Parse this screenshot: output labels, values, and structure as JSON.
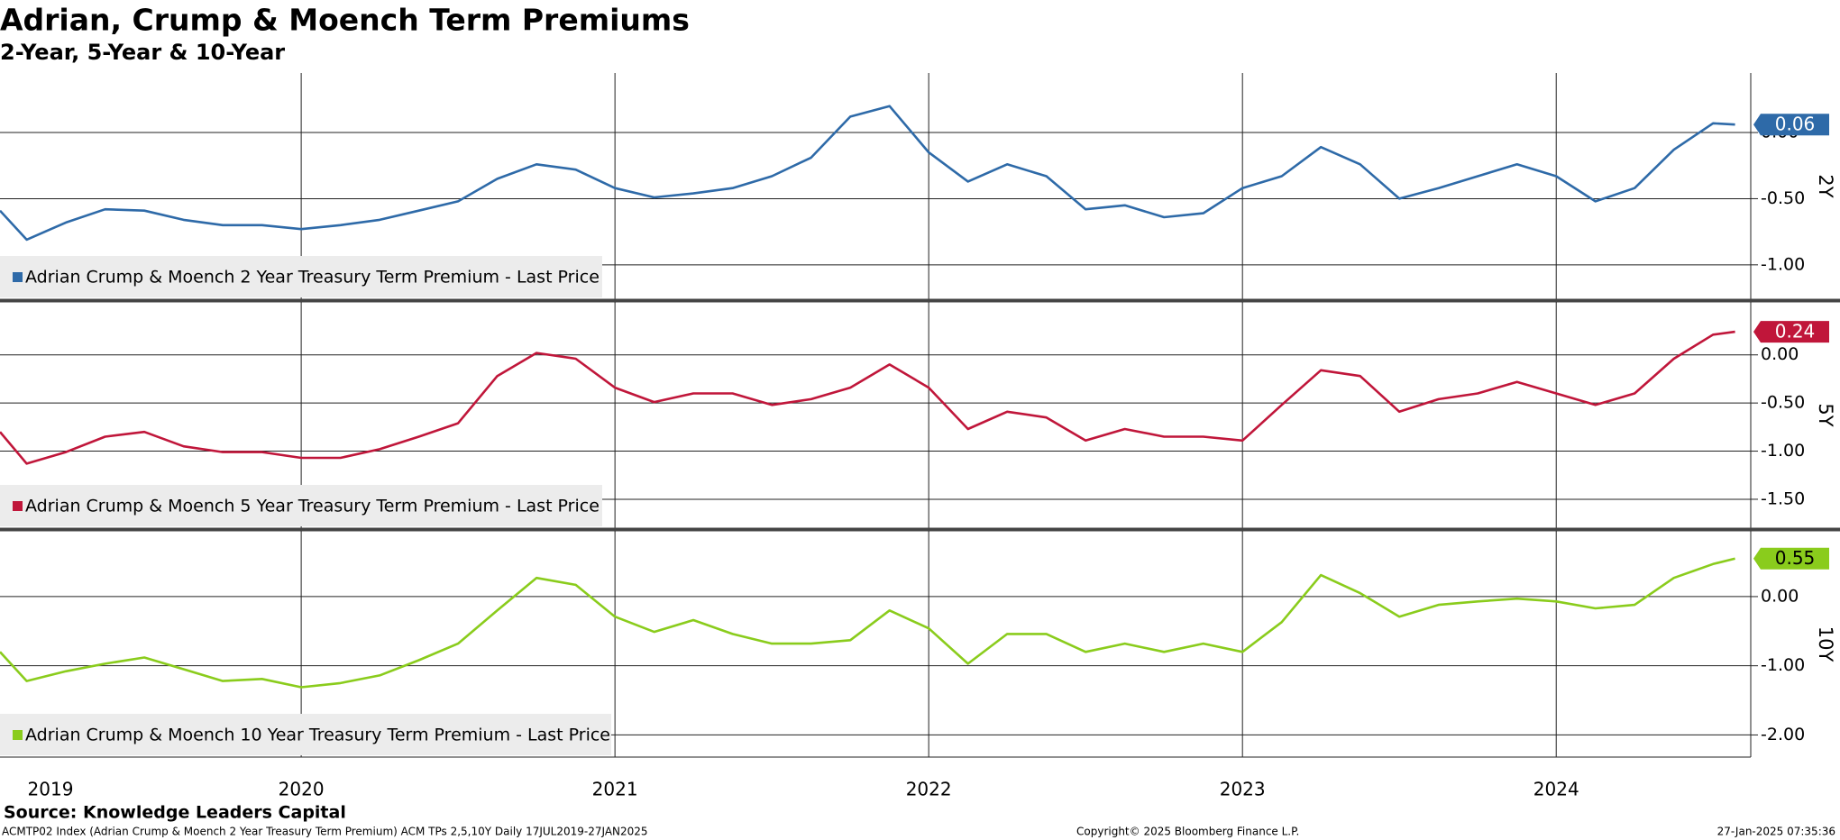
{
  "header": {
    "title": "Adrian, Crump & Moench Term Premiums",
    "subtitle": "2-Year, 5-Year & 10-Year"
  },
  "chart_data": [
    {
      "type": "line",
      "axis_label": "2Y",
      "x": [
        2019.54,
        2019.625,
        2019.75,
        2019.875,
        2020.0,
        2020.125,
        2020.25,
        2020.375,
        2020.5,
        2020.625,
        2020.75,
        2020.875,
        2021.0,
        2021.125,
        2021.25,
        2021.375,
        2021.5,
        2021.625,
        2021.75,
        2021.875,
        2022.0,
        2022.125,
        2022.25,
        2022.375,
        2022.5,
        2022.625,
        2022.75,
        2022.875,
        2023.0,
        2023.125,
        2023.25,
        2023.375,
        2023.5,
        2023.625,
        2023.75,
        2023.875,
        2024.0,
        2024.125,
        2024.25,
        2024.375,
        2024.5,
        2024.625,
        2024.75,
        2024.875,
        2025.0,
        2025.07
      ],
      "series": [
        {
          "name": "Adrian Crump & Moench 2 Year Treasury Term Premium - Last Price",
          "color": "#2e6aa8",
          "values": [
            -0.59,
            -0.81,
            -0.68,
            -0.58,
            -0.59,
            -0.66,
            -0.7,
            -0.7,
            -0.73,
            -0.7,
            -0.66,
            -0.59,
            -0.52,
            -0.35,
            -0.24,
            -0.28,
            -0.42,
            -0.49,
            -0.46,
            -0.42,
            -0.33,
            -0.19,
            0.12,
            0.2,
            -0.15,
            -0.37,
            -0.24,
            -0.33,
            -0.58,
            -0.55,
            -0.64,
            -0.61,
            -0.42,
            -0.33,
            -0.11,
            -0.24,
            -0.5,
            -0.42,
            -0.33,
            -0.24,
            -0.33,
            -0.52,
            -0.42,
            -0.13,
            0.07,
            0.06
          ]
        }
      ],
      "ylim": [
        -1.26,
        0.45
      ],
      "yticks": [
        {
          "value": 0,
          "label": "0.00"
        },
        {
          "value": -0.5,
          "label": "-0.50"
        },
        {
          "value": -1,
          "label": "-1.00"
        }
      ]
    },
    {
      "type": "line",
      "axis_label": "5Y",
      "x": [
        2019.54,
        2019.625,
        2019.75,
        2019.875,
        2020.0,
        2020.125,
        2020.25,
        2020.375,
        2020.5,
        2020.625,
        2020.75,
        2020.875,
        2021.0,
        2021.125,
        2021.25,
        2021.375,
        2021.5,
        2021.625,
        2021.75,
        2021.875,
        2022.0,
        2022.125,
        2022.25,
        2022.375,
        2022.5,
        2022.625,
        2022.75,
        2022.875,
        2023.0,
        2023.125,
        2023.25,
        2023.375,
        2023.5,
        2023.625,
        2023.75,
        2023.875,
        2024.0,
        2024.125,
        2024.25,
        2024.375,
        2024.5,
        2024.625,
        2024.75,
        2024.875,
        2025.0,
        2025.07
      ],
      "series": [
        {
          "name": "Adrian Crump & Moench 5 Year Treasury Term Premium - Last Price",
          "color": "#c0163a",
          "values": [
            -0.8,
            -1.13,
            -1.01,
            -0.85,
            -0.8,
            -0.95,
            -1.01,
            -1.01,
            -1.07,
            -1.07,
            -0.98,
            -0.85,
            -0.71,
            -0.22,
            0.02,
            -0.04,
            -0.34,
            -0.49,
            -0.4,
            -0.4,
            -0.52,
            -0.46,
            -0.34,
            -0.1,
            -0.34,
            -0.77,
            -0.59,
            -0.65,
            -0.89,
            -0.77,
            -0.85,
            -0.85,
            -0.89,
            -0.52,
            -0.16,
            -0.22,
            -0.59,
            -0.46,
            -0.4,
            -0.28,
            -0.4,
            -0.52,
            -0.4,
            -0.04,
            0.21,
            0.24
          ]
        }
      ],
      "ylim": [
        -1.8,
        0.55
      ],
      "yticks": [
        {
          "value": 0,
          "label": "0.00"
        },
        {
          "value": -0.5,
          "label": "-0.50"
        },
        {
          "value": -1,
          "label": "-1.00"
        },
        {
          "value": -1.5,
          "label": "-1.50"
        }
      ]
    },
    {
      "type": "line",
      "axis_label": "10Y",
      "x": [
        2019.54,
        2019.625,
        2019.75,
        2019.875,
        2020.0,
        2020.125,
        2020.25,
        2020.375,
        2020.5,
        2020.625,
        2020.75,
        2020.875,
        2021.0,
        2021.125,
        2021.25,
        2021.375,
        2021.5,
        2021.625,
        2021.75,
        2021.875,
        2022.0,
        2022.125,
        2022.25,
        2022.375,
        2022.5,
        2022.625,
        2022.75,
        2022.875,
        2023.0,
        2023.125,
        2023.25,
        2023.375,
        2023.5,
        2023.625,
        2023.75,
        2023.875,
        2024.0,
        2024.125,
        2024.25,
        2024.375,
        2024.5,
        2024.625,
        2024.75,
        2024.875,
        2025.0,
        2025.07
      ],
      "series": [
        {
          "name": "Adrian Crump & Moench 10 Year Treasury Term Premium - Last Price",
          "color": "#8acc1c",
          "values": [
            -0.8,
            -1.22,
            -1.08,
            -0.97,
            -0.88,
            -1.05,
            -1.22,
            -1.19,
            -1.31,
            -1.25,
            -1.14,
            -0.92,
            -0.68,
            -0.2,
            0.27,
            0.17,
            -0.29,
            -0.51,
            -0.34,
            -0.54,
            -0.68,
            -0.68,
            -0.63,
            -0.2,
            -0.46,
            -0.97,
            -0.54,
            -0.54,
            -0.8,
            -0.68,
            -0.8,
            -0.68,
            -0.8,
            -0.37,
            0.31,
            0.05,
            -0.29,
            -0.12,
            -0.07,
            -0.03,
            -0.07,
            -0.17,
            -0.12,
            0.27,
            0.47,
            0.55
          ]
        }
      ],
      "ylim": [
        -2.32,
        0.95
      ],
      "yticks": [
        {
          "value": 0,
          "label": "0.00"
        },
        {
          "value": -1,
          "label": "-1.00"
        },
        {
          "value": -2,
          "label": "-2.00"
        }
      ],
      "xlim": [
        2019.54,
        2025.12
      ],
      "xticks": [
        {
          "value": 2019.5,
          "label": "2019"
        },
        {
          "value": 2020.5,
          "label": "2020"
        },
        {
          "value": 2021.5,
          "label": "2021"
        },
        {
          "value": 2022.5,
          "label": "2022"
        },
        {
          "value": 2023.5,
          "label": "2023"
        },
        {
          "value": 2024.5,
          "label": "2024"
        }
      ]
    }
  ],
  "footer": {
    "source": "Source: Knowledge Leaders Capital",
    "info": "ACMTP02 Index (Adrian Crump & Moench 2 Year Treasury Term Premium) ACM TPs 2,5,10Y  Daily 17JUL2019-27JAN2025",
    "copyright": "Copyright© 2025 Bloomberg Finance L.P.",
    "timestamp": "27-Jan-2025 07:35:36"
  }
}
